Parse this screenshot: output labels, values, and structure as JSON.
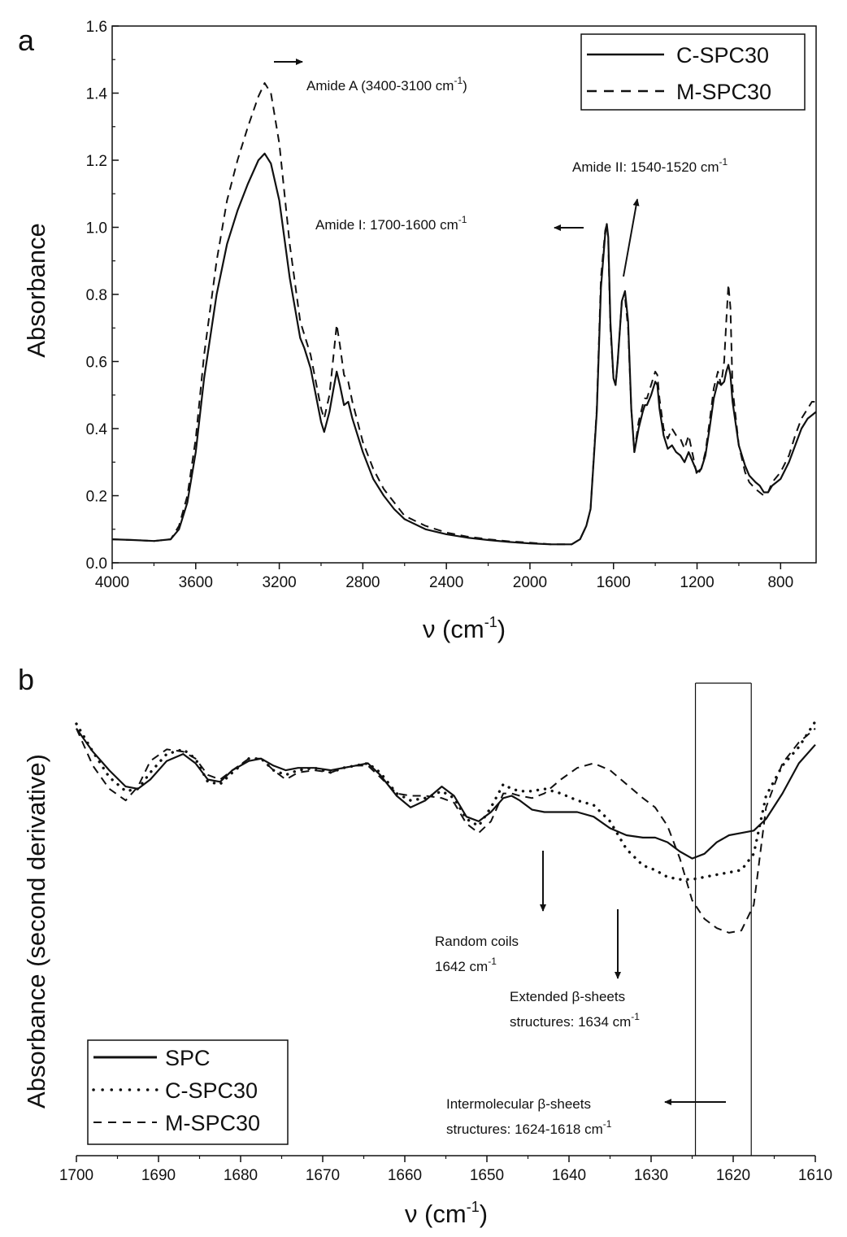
{
  "charts": [
    {
      "panel": "a",
      "chart_data": {
        "type": "line",
        "xlabel_main": "ν (cm",
        "xlabel_sup": "-1",
        "xlabel_close": ")",
        "ylabel": "Absorbance",
        "xlim": [
          4000,
          630
        ],
        "ylim": [
          0,
          1.6
        ],
        "xticks": [
          4000,
          3600,
          3200,
          2800,
          2400,
          2000,
          1600,
          1200,
          800
        ],
        "xtick_labels": [
          "4000",
          "3600",
          "3200",
          "2800",
          "2400",
          "2000",
          "1600",
          "1200",
          "800"
        ],
        "yticks": [
          0,
          0.2,
          0.4,
          0.6,
          0.8,
          1.0,
          1.2,
          1.4,
          1.6
        ],
        "ytick_labels": [
          "0.0",
          "0.2",
          "0.4",
          "0.6",
          "0.8",
          "1.0",
          "1.2",
          "1.4",
          "1.6"
        ],
        "legend_position": "top-right",
        "series": [
          {
            "name": "C-SPC30",
            "style": "solid",
            "x": [
              4000,
              3900,
              3800,
              3720,
              3680,
              3640,
              3600,
              3560,
              3500,
              3450,
              3400,
              3350,
              3300,
              3270,
              3240,
              3200,
              3150,
              3100,
              3080,
              3050,
              3000,
              2985,
              2960,
              2940,
              2925,
              2910,
              2890,
              2870,
              2850,
              2800,
              2750,
              2700,
              2650,
              2600,
              2500,
              2400,
              2300,
              2200,
              2100,
              2000,
              1900,
              1800,
              1760,
              1730,
              1710,
              1680,
              1660,
              1640,
              1632,
              1625,
              1615,
              1600,
              1590,
              1580,
              1560,
              1545,
              1530,
              1515,
              1500,
              1480,
              1460,
              1450,
              1440,
              1420,
              1400,
              1390,
              1380,
              1360,
              1340,
              1320,
              1300,
              1280,
              1260,
              1240,
              1220,
              1200,
              1180,
              1160,
              1140,
              1120,
              1100,
              1085,
              1070,
              1060,
              1050,
              1040,
              1030,
              1000,
              970,
              950,
              920,
              900,
              880,
              860,
              840,
              800,
              760,
              730,
              700,
              670,
              650,
              630
            ],
            "y": [
              0.07,
              0.068,
              0.065,
              0.07,
              0.1,
              0.18,
              0.33,
              0.55,
              0.8,
              0.95,
              1.05,
              1.13,
              1.2,
              1.22,
              1.19,
              1.08,
              0.85,
              0.67,
              0.64,
              0.58,
              0.42,
              0.39,
              0.45,
              0.52,
              0.57,
              0.53,
              0.47,
              0.48,
              0.43,
              0.33,
              0.25,
              0.2,
              0.16,
              0.13,
              0.1,
              0.085,
              0.075,
              0.068,
              0.062,
              0.058,
              0.055,
              0.055,
              0.07,
              0.11,
              0.16,
              0.45,
              0.82,
              0.98,
              1.01,
              0.97,
              0.72,
              0.55,
              0.53,
              0.6,
              0.78,
              0.81,
              0.72,
              0.46,
              0.33,
              0.4,
              0.45,
              0.47,
              0.47,
              0.5,
              0.54,
              0.53,
              0.46,
              0.38,
              0.34,
              0.35,
              0.33,
              0.32,
              0.3,
              0.33,
              0.3,
              0.27,
              0.28,
              0.32,
              0.4,
              0.49,
              0.54,
              0.53,
              0.54,
              0.57,
              0.59,
              0.56,
              0.48,
              0.35,
              0.29,
              0.26,
              0.24,
              0.23,
              0.21,
              0.21,
              0.23,
              0.25,
              0.3,
              0.35,
              0.4,
              0.43,
              0.44,
              0.45
            ]
          },
          {
            "name": "M-SPC30",
            "style": "dashed",
            "x": [
              4000,
              3900,
              3800,
              3720,
              3680,
              3640,
              3600,
              3560,
              3500,
              3450,
              3400,
              3350,
              3300,
              3270,
              3240,
              3200,
              3150,
              3100,
              3080,
              3050,
              3000,
              2985,
              2960,
              2940,
              2925,
              2910,
              2890,
              2870,
              2850,
              2800,
              2750,
              2700,
              2650,
              2600,
              2500,
              2400,
              2300,
              2200,
              2100,
              2000,
              1900,
              1800,
              1760,
              1730,
              1710,
              1680,
              1660,
              1640,
              1632,
              1625,
              1615,
              1600,
              1590,
              1580,
              1560,
              1545,
              1530,
              1515,
              1500,
              1480,
              1460,
              1450,
              1440,
              1420,
              1400,
              1390,
              1380,
              1360,
              1340,
              1320,
              1300,
              1280,
              1260,
              1240,
              1220,
              1200,
              1180,
              1160,
              1140,
              1120,
              1100,
              1085,
              1070,
              1060,
              1050,
              1040,
              1030,
              1000,
              970,
              950,
              920,
              900,
              880,
              860,
              840,
              800,
              760,
              730,
              700,
              670,
              650,
              630
            ],
            "y": [
              0.07,
              0.068,
              0.065,
              0.07,
              0.11,
              0.2,
              0.37,
              0.62,
              0.9,
              1.08,
              1.2,
              1.3,
              1.39,
              1.43,
              1.4,
              1.25,
              0.95,
              0.72,
              0.68,
              0.62,
              0.46,
              0.43,
              0.5,
              0.62,
              0.71,
              0.65,
              0.56,
              0.54,
              0.48,
              0.36,
              0.28,
              0.22,
              0.18,
              0.14,
              0.11,
              0.09,
              0.078,
              0.07,
              0.064,
              0.06,
              0.055,
              0.055,
              0.07,
              0.11,
              0.16,
              0.46,
              0.85,
              0.99,
              1.01,
              0.96,
              0.7,
              0.55,
              0.53,
              0.6,
              0.78,
              0.79,
              0.7,
              0.46,
              0.33,
              0.42,
              0.47,
              0.49,
              0.49,
              0.53,
              0.57,
              0.56,
              0.49,
              0.4,
              0.37,
              0.4,
              0.38,
              0.37,
              0.34,
              0.38,
              0.32,
              0.26,
              0.28,
              0.33,
              0.42,
              0.52,
              0.57,
              0.53,
              0.6,
              0.72,
              0.83,
              0.76,
              0.52,
              0.35,
              0.27,
              0.24,
              0.22,
              0.21,
              0.2,
              0.21,
              0.24,
              0.27,
              0.32,
              0.38,
              0.43,
              0.46,
              0.48,
              0.48
            ]
          }
        ],
        "annotations": [
          {
            "id": "amideA",
            "text_main": "Amide A (3400-3100 cm",
            "text_sup": "-1",
            "text_close": ")"
          },
          {
            "id": "amideII",
            "text_main": "Amide II: 1540-1520 cm",
            "text_sup": "-1",
            "text_close": ""
          },
          {
            "id": "amideI",
            "text_main": "Amide I: 1700-1600 cm",
            "text_sup": "-1",
            "text_close": ""
          }
        ]
      }
    },
    {
      "panel": "b",
      "chart_data": {
        "type": "line",
        "xlabel_main": "ν (cm",
        "xlabel_sup": "-1",
        "xlabel_close": ")",
        "ylabel": "Absorbance (second derivative)",
        "xlim": [
          1700,
          1610
        ],
        "y_scale": "arbitrary (no tick labels)",
        "ylim": [
          -1.0,
          1.0
        ],
        "xticks": [
          1700,
          1690,
          1680,
          1670,
          1660,
          1650,
          1640,
          1630,
          1620,
          1610
        ],
        "xtick_labels": [
          "1700",
          "1690",
          "1680",
          "1670",
          "1660",
          "1650",
          "1640",
          "1630",
          "1620",
          "1610"
        ],
        "legend_position": "bottom-left",
        "highlight_band": [
          1624.6,
          1617.8
        ],
        "series": [
          {
            "name": "SPC",
            "style": "solid",
            "x": [
              1700,
              1698,
              1696,
              1694,
              1692.5,
              1691,
              1689,
              1687,
              1685.5,
              1684,
              1682.5,
              1681,
              1679,
              1677.5,
              1676,
              1674.5,
              1673,
              1671,
              1669,
              1667.5,
              1666,
              1664.5,
              1663,
              1661,
              1659.3,
              1657.5,
              1655.5,
              1654,
              1652.5,
              1651,
              1649.5,
              1648,
              1647,
              1646,
              1644.5,
              1643,
              1641,
              1639,
              1637,
              1635,
              1633,
              1631,
              1629.5,
              1628,
              1626.5,
              1625,
              1623.5,
              1622,
              1620.5,
              1619,
              1617.5,
              1616,
              1614,
              1612,
              1610
            ],
            "y": [
              0.84,
              0.74,
              0.66,
              0.59,
              0.58,
              0.62,
              0.7,
              0.73,
              0.69,
              0.62,
              0.61,
              0.66,
              0.7,
              0.71,
              0.68,
              0.66,
              0.67,
              0.67,
              0.66,
              0.67,
              0.68,
              0.69,
              0.64,
              0.55,
              0.5,
              0.53,
              0.59,
              0.55,
              0.46,
              0.44,
              0.48,
              0.54,
              0.55,
              0.53,
              0.49,
              0.48,
              0.48,
              0.48,
              0.46,
              0.41,
              0.38,
              0.37,
              0.37,
              0.35,
              0.31,
              0.28,
              0.3,
              0.35,
              0.38,
              0.39,
              0.4,
              0.45,
              0.56,
              0.69,
              0.77
            ]
          },
          {
            "name": "C-SPC30",
            "style": "dotted",
            "x": [
              1700,
              1698,
              1696,
              1694,
              1692.5,
              1691,
              1689,
              1687,
              1685.5,
              1684,
              1682.5,
              1681,
              1679,
              1677.5,
              1676,
              1674.5,
              1673,
              1671,
              1669,
              1667.5,
              1666,
              1664.5,
              1663,
              1661,
              1659.3,
              1657.5,
              1655.5,
              1654,
              1652.5,
              1651,
              1649.5,
              1648,
              1647,
              1646,
              1644.5,
              1643,
              1641,
              1639,
              1637,
              1635,
              1633,
              1631,
              1629.5,
              1628,
              1626.5,
              1625,
              1623.5,
              1622,
              1620.5,
              1619,
              1617.5,
              1616,
              1614,
              1612,
              1610
            ],
            "y": [
              0.86,
              0.74,
              0.63,
              0.57,
              0.58,
              0.65,
              0.73,
              0.75,
              0.71,
              0.61,
              0.6,
              0.65,
              0.71,
              0.71,
              0.66,
              0.64,
              0.66,
              0.67,
              0.65,
              0.67,
              0.68,
              0.69,
              0.65,
              0.56,
              0.53,
              0.54,
              0.57,
              0.54,
              0.45,
              0.42,
              0.5,
              0.6,
              0.58,
              0.57,
              0.57,
              0.58,
              0.56,
              0.53,
              0.51,
              0.44,
              0.32,
              0.25,
              0.23,
              0.2,
              0.19,
              0.19,
              0.2,
              0.21,
              0.22,
              0.23,
              0.3,
              0.55,
              0.68,
              0.76,
              0.87
            ]
          },
          {
            "name": "M-SPC30",
            "style": "dashed",
            "x": [
              1700,
              1698,
              1696,
              1694,
              1692.5,
              1691,
              1689,
              1687,
              1685.5,
              1684,
              1682.5,
              1681,
              1679,
              1677.5,
              1676,
              1674.5,
              1673,
              1671,
              1669,
              1667.5,
              1666,
              1664.5,
              1663,
              1661,
              1659.3,
              1657.5,
              1655.5,
              1654,
              1652.5,
              1651,
              1649.5,
              1648,
              1647,
              1646,
              1644.5,
              1643,
              1641,
              1639,
              1637,
              1635,
              1633,
              1631,
              1629.5,
              1628,
              1626.5,
              1625,
              1623.5,
              1622,
              1620.5,
              1619,
              1617.5,
              1616,
              1614,
              1612,
              1610
            ],
            "y": [
              0.84,
              0.68,
              0.58,
              0.53,
              0.59,
              0.7,
              0.75,
              0.74,
              0.71,
              0.64,
              0.62,
              0.66,
              0.71,
              0.71,
              0.66,
              0.62,
              0.65,
              0.66,
              0.65,
              0.67,
              0.68,
              0.68,
              0.63,
              0.56,
              0.55,
              0.55,
              0.54,
              0.52,
              0.43,
              0.39,
              0.44,
              0.56,
              0.56,
              0.55,
              0.54,
              0.56,
              0.62,
              0.67,
              0.69,
              0.66,
              0.6,
              0.54,
              0.5,
              0.42,
              0.28,
              0.1,
              0.02,
              -0.02,
              -0.04,
              -0.03,
              0.08,
              0.5,
              0.69,
              0.78,
              0.84
            ]
          }
        ],
        "annotations": [
          {
            "id": "random",
            "line1": "Random coils",
            "line2_main": "1642 cm",
            "line2_sup": "-1"
          },
          {
            "id": "extended",
            "line1": "Extended β-sheets",
            "line2_main": "structures: 1634 cm",
            "line2_sup": "-1"
          },
          {
            "id": "intermolecular",
            "line1": "Intermolecular β-sheets",
            "line2_main": "structures: 1624-1618 cm",
            "line2_sup": "-1"
          }
        ]
      }
    }
  ]
}
